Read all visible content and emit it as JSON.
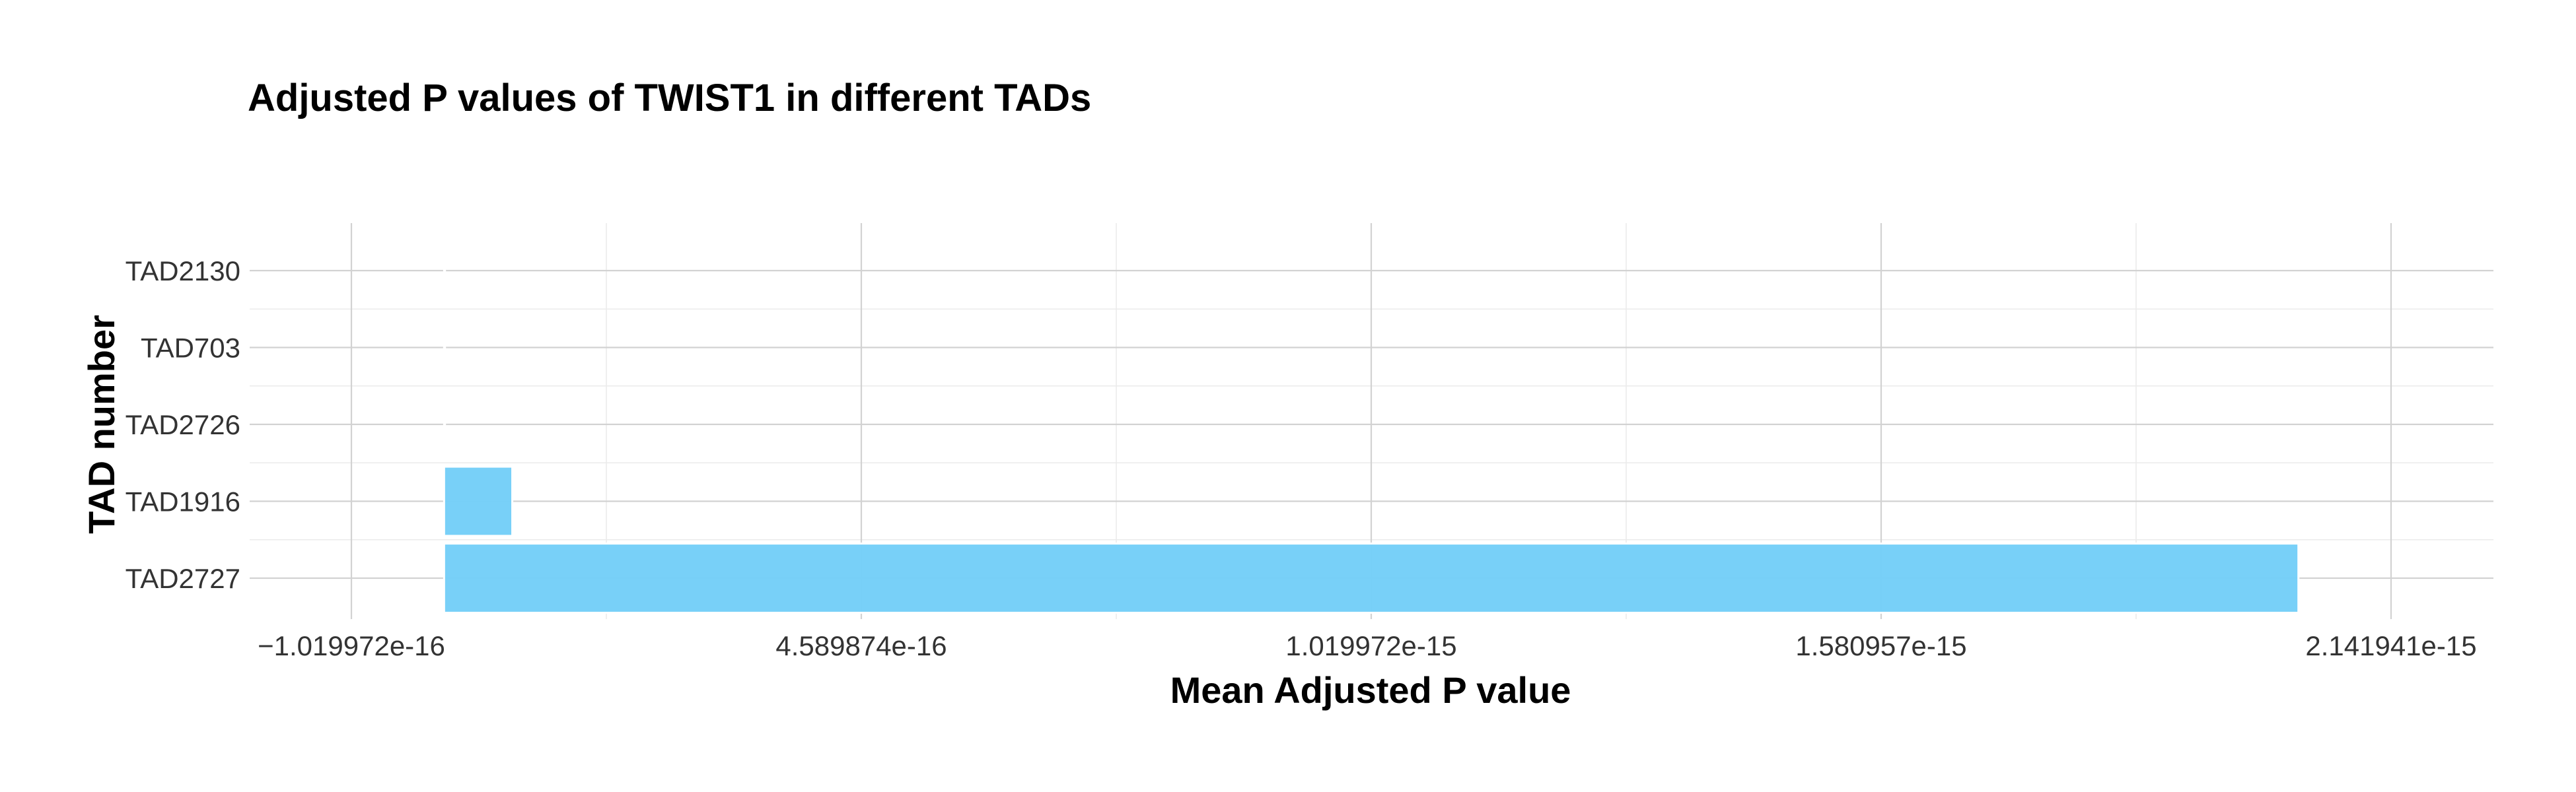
{
  "chart_data": {
    "type": "bar",
    "orientation": "horizontal",
    "title": "Adjusted P values of TWIST1 in different TADs",
    "xlabel": "Mean Adjusted P value",
    "ylabel": "TAD number",
    "categories": [
      "TAD2727",
      "TAD1916",
      "TAD2726",
      "TAD703",
      "TAD2130"
    ],
    "values": [
      2.04e-15,
      7.5e-17,
      1e-18,
      1e-18,
      1e-18
    ],
    "xlim": [
      -1.019972e-16,
      2.141941e-15
    ],
    "xticks": [
      -1.019972e-16,
      4.589874e-16,
      1.019972e-15,
      1.580957e-15,
      2.141941e-15
    ],
    "xtick_labels": [
      "−1.019972e-16",
      "4.589874e-16",
      "1.019972e-15",
      "1.580957e-15",
      "2.141941e-15"
    ],
    "grid": true,
    "legend": "none",
    "bar_color": "#74cef8"
  }
}
